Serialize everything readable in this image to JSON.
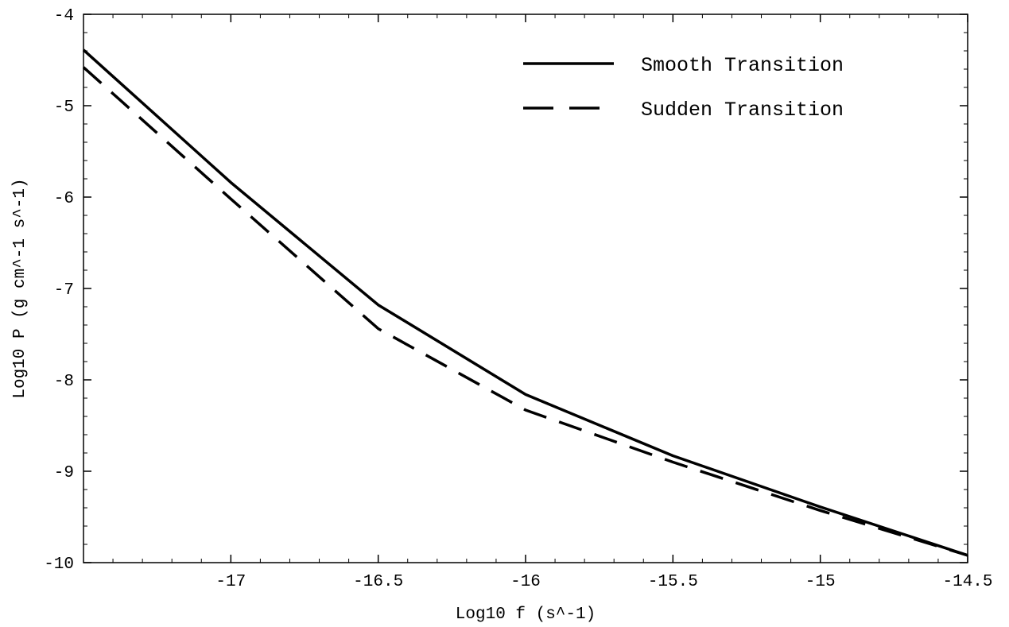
{
  "chart_data": {
    "type": "line",
    "title": "",
    "xlabel": "Log10 f (s^-1)",
    "ylabel": "Log10 P (g cm^-1 s^-1)",
    "xlim": [
      -17.5,
      -14.5
    ],
    "ylim": [
      -10,
      -4
    ],
    "xticks": [
      -17,
      -16.5,
      -16,
      -15.5,
      -15,
      -14.5
    ],
    "xtick_labels": [
      "-17",
      "-16.5",
      "-16",
      "-15.5",
      "-15",
      "-14.5"
    ],
    "yticks": [
      -10,
      -9,
      -8,
      -7,
      -6,
      -5,
      -4
    ],
    "ytick_labels": [
      "-10",
      "-9",
      "-8",
      "-7",
      "-6",
      "-5",
      "-4"
    ],
    "grid": false,
    "legend_position": "top-right",
    "series": [
      {
        "name": "Smooth Transition",
        "style": "solid",
        "color": "#000000",
        "x": [
          -17.5,
          -17.0,
          -16.5,
          -16.0,
          -15.5,
          -15.0,
          -14.5
        ],
        "y": [
          -4.39,
          -5.84,
          -7.18,
          -8.16,
          -8.83,
          -9.39,
          -9.92
        ]
      },
      {
        "name": "Sudden Transition",
        "style": "dashed",
        "color": "#000000",
        "x": [
          -17.5,
          -17.0,
          -16.5,
          -16.0,
          -15.5,
          -15.0,
          -14.5
        ],
        "y": [
          -4.58,
          -6.02,
          -7.44,
          -8.33,
          -8.9,
          -9.43,
          -9.92
        ]
      }
    ]
  }
}
